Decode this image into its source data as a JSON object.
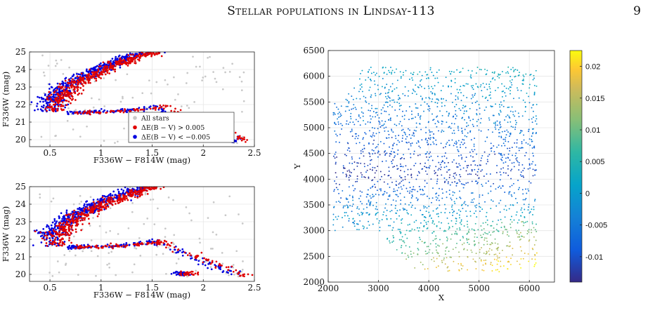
{
  "header": {
    "running_head": "Stellar populations in Lindsay-113",
    "page_number": "9"
  },
  "colors": {
    "all_stars": "#c8c8c8",
    "red_stars": "#e00000",
    "blue_stars": "#0000e0",
    "axes": "#222222",
    "grid": "#e6e6e6"
  },
  "chart_data": [
    {
      "id": "cmd-top",
      "type": "scatter",
      "xlabel": "F336W − F814W (mag)",
      "ylabel": "F336W (mag)",
      "xlim": [
        0.3,
        2.5
      ],
      "ylim": [
        25,
        19.6
      ],
      "y_inverted": true,
      "xticks": [
        "0.5",
        "1",
        "1.5",
        "2",
        "2.5"
      ],
      "yticks": [
        "20",
        "21",
        "22",
        "23",
        "24",
        "25"
      ],
      "grid": true,
      "legend_position": "lower-right",
      "legend": [
        "All stars",
        "ΔE(B − V) > 0.005",
        "ΔE(B − V) < −0.005"
      ],
      "series": [
        {
          "name": "All stars",
          "color": "#c8c8c8"
        },
        {
          "name": "ΔE(B − V) > 0.005",
          "color": "#e00000"
        },
        {
          "name": "ΔE(B − V) < −0.005",
          "color": "#0000e0"
        }
      ]
    },
    {
      "id": "cmd-bottom",
      "type": "scatter",
      "xlabel": "F336W − F814W (mag)",
      "ylabel": "F336W (mag)",
      "xlim": [
        0.3,
        2.5
      ],
      "ylim": [
        25,
        19.6
      ],
      "y_inverted": true,
      "xticks": [
        "0.5",
        "1",
        "1.5",
        "2",
        "2.5"
      ],
      "yticks": [
        "20",
        "21",
        "22",
        "23",
        "24",
        "25"
      ],
      "grid": true,
      "series": [
        {
          "name": "All stars",
          "color": "#c8c8c8"
        },
        {
          "name": "ΔE(B − V) > 0.005",
          "color": "#e00000"
        },
        {
          "name": "ΔE(B − V) < −0.005",
          "color": "#0000e0"
        }
      ]
    },
    {
      "id": "map",
      "type": "scatter",
      "xlabel": "X",
      "ylabel": "Y",
      "xlim": [
        2000,
        6500
      ],
      "ylim": [
        2000,
        6500
      ],
      "xticks": [
        "2000",
        "3000",
        "4000",
        "5000",
        "6000"
      ],
      "yticks": [
        "2000",
        "2500",
        "3000",
        "3500",
        "4000",
        "4500",
        "5000",
        "5500",
        "6000",
        "6500"
      ],
      "grid": true,
      "colorbar": {
        "colormap": "parula",
        "range": [
          -0.014,
          0.0225
        ],
        "ticks": [
          "-0.01",
          "-0.005",
          "0",
          "0.005",
          "0.01",
          "0.015",
          "0.02"
        ]
      }
    }
  ]
}
